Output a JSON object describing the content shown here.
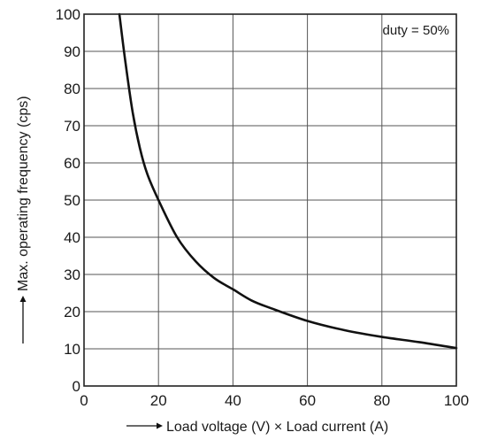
{
  "chart_data": {
    "type": "line",
    "title": "",
    "xlabel": "Load voltage (V) × Load current (A)",
    "ylabel": "Max. operating frequency (cps)",
    "xlim": [
      0,
      100
    ],
    "ylim": [
      0,
      100
    ],
    "x_ticks": [
      "0",
      "20",
      "40",
      "60",
      "80",
      "100"
    ],
    "y_ticks": [
      "0",
      "10",
      "20",
      "30",
      "40",
      "50",
      "60",
      "70",
      "80",
      "90",
      "100"
    ],
    "grid": true,
    "annotation": "duty = 50%",
    "series": [
      {
        "x": [
          9.5,
          11,
          13,
          15,
          17,
          20,
          25,
          30,
          35,
          40,
          45,
          50,
          60,
          70,
          80,
          90,
          100
        ],
        "y": [
          100,
          88,
          74,
          64,
          57,
          50,
          40,
          33.5,
          29,
          26,
          23,
          21,
          17.5,
          15,
          13.2,
          11.8,
          10.2
        ]
      }
    ],
    "colors": {
      "line": "#111111",
      "grid": "#555555",
      "frame": "#222222"
    }
  }
}
